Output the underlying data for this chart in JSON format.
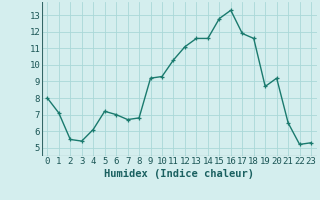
{
  "x": [
    0,
    1,
    2,
    3,
    4,
    5,
    6,
    7,
    8,
    9,
    10,
    11,
    12,
    13,
    14,
    15,
    16,
    17,
    18,
    19,
    20,
    21,
    22,
    23
  ],
  "y": [
    8.0,
    7.1,
    5.5,
    5.4,
    6.1,
    7.2,
    7.0,
    6.7,
    6.8,
    9.2,
    9.3,
    10.3,
    11.1,
    11.6,
    11.6,
    12.8,
    13.3,
    11.9,
    11.6,
    8.7,
    9.2,
    6.5,
    5.2,
    5.3
  ],
  "line_color": "#1a7a6e",
  "marker": "+",
  "marker_size": 3,
  "linewidth": 1.0,
  "xlabel": "Humidex (Indice chaleur)",
  "ylim": [
    4.5,
    13.8
  ],
  "xlim": [
    -0.5,
    23.5
  ],
  "yticks": [
    5,
    6,
    7,
    8,
    9,
    10,
    11,
    12,
    13
  ],
  "xticks": [
    0,
    1,
    2,
    3,
    4,
    5,
    6,
    7,
    8,
    9,
    10,
    11,
    12,
    13,
    14,
    15,
    16,
    17,
    18,
    19,
    20,
    21,
    22,
    23
  ],
  "bg_color": "#d4eeee",
  "grid_color": "#aad8d8",
  "tick_label_size": 6.5,
  "xlabel_size": 7.5,
  "xlabel_color": "#1a6060"
}
